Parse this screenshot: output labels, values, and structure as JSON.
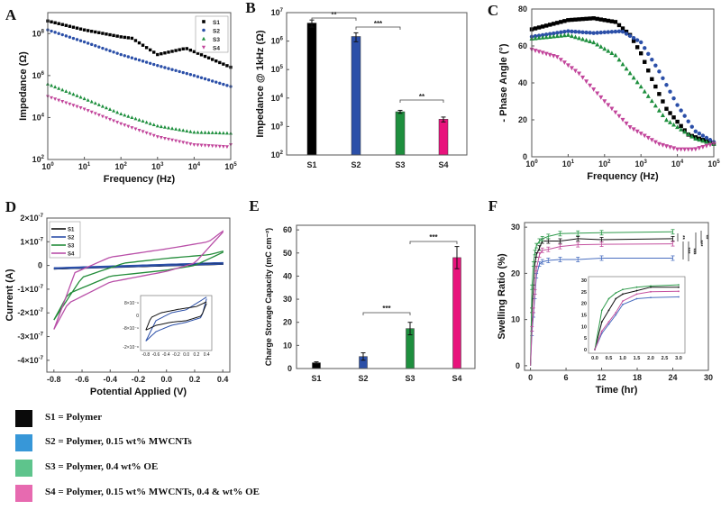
{
  "colors": {
    "S1": "#000000",
    "S2": "#2b4fa8",
    "S3": "#1e8f3e",
    "S4": "#c2459b",
    "S4bar": "#e8137c"
  },
  "sample_key": [
    {
      "label": "S1 = Polymer",
      "color": "#0a0a0a"
    },
    {
      "label": "S2 = Polymer, 0.15 wt% MWCNTs",
      "color": "#3797d8"
    },
    {
      "label": "S3 = Polymer, 0.4 wt% OE",
      "color": "#5ec48c"
    },
    {
      "label": "S4 = Polymer, 0.15 wt% MWCNTs, 0.4 & wt% OE",
      "color": "#e76ab0"
    }
  ],
  "chart_data": [
    {
      "panel": "A",
      "type": "scatter",
      "title": "",
      "xlabel": "Frequency (Hz)",
      "ylabel": "Impedance (Ω)",
      "xscale": "log",
      "yscale": "log",
      "xlim": [
        1,
        100000
      ],
      "ylim": [
        100,
        1000000000
      ],
      "xticks": [
        "10⁰",
        "10¹",
        "10²",
        "10³",
        "10⁴",
        "10⁵"
      ],
      "yticks": [
        "10²",
        "10⁴",
        "10⁶",
        "10⁸"
      ],
      "legend": {
        "placement": "top-right",
        "entries": [
          "S1",
          "S2",
          "S3",
          "S4"
        ]
      },
      "series": [
        {
          "name": "S1",
          "marker": "square",
          "points": [
            [
              1,
              400000000
            ],
            [
              10,
              150000000
            ],
            [
              100,
              70000000
            ],
            [
              200,
              60000000
            ],
            [
              1000,
              10000000
            ],
            [
              6000,
              20000000
            ],
            [
              100000,
              2500000
            ]
          ]
        },
        {
          "name": "S2",
          "marker": "circle",
          "points": [
            [
              1,
              150000000
            ],
            [
              10,
              40000000
            ],
            [
              100,
              10000000
            ],
            [
              1000,
              3000000
            ],
            [
              10000,
              1000000
            ],
            [
              100000,
              300000
            ]
          ]
        },
        {
          "name": "S3",
          "marker": "triangle-up",
          "points": [
            [
              1,
              400000
            ],
            [
              10,
              80000
            ],
            [
              100,
              15000
            ],
            [
              1000,
              4000
            ],
            [
              10000,
              2000
            ],
            [
              100000,
              1800
            ]
          ]
        },
        {
          "name": "S4",
          "marker": "triangle-down",
          "points": [
            [
              1,
              100000
            ],
            [
              10,
              25000
            ],
            [
              100,
              5000
            ],
            [
              1000,
              1200
            ],
            [
              10000,
              500
            ],
            [
              80000,
              400
            ],
            [
              100000,
              500
            ]
          ]
        }
      ]
    },
    {
      "panel": "B",
      "type": "bar",
      "title": "",
      "xlabel": "",
      "ylabel": "Impedance @ 1kHz (Ω)",
      "yscale": "log",
      "ylim": [
        100,
        10000000
      ],
      "categories": [
        "S1",
        "S2",
        "S3",
        "S4"
      ],
      "values": [
        4300000,
        1450000,
        3300,
        1800
      ],
      "errors": [
        1200000,
        500000,
        400,
        350
      ],
      "yticks": [
        "10²",
        "10³",
        "10⁴",
        "10⁵",
        "10⁶",
        "10⁷"
      ],
      "significance": [
        {
          "pair": [
            "S1",
            "S2"
          ],
          "label": "**"
        },
        {
          "pair": [
            "S2",
            "S3"
          ],
          "label": "***"
        },
        {
          "pair": [
            "S3",
            "S4"
          ],
          "label": "**"
        }
      ]
    },
    {
      "panel": "C",
      "type": "scatter",
      "title": "",
      "xlabel": "Frequency (Hz)",
      "ylabel": "- Phase Angle (°)",
      "xscale": "log",
      "xlim": [
        1,
        100000
      ],
      "ylim": [
        0,
        80
      ],
      "xticks": [
        "10⁰",
        "10¹",
        "10²",
        "10³",
        "10⁴",
        "10⁵"
      ],
      "yticks": [
        "0",
        "20",
        "40",
        "60",
        "80"
      ],
      "series": [
        {
          "name": "S1",
          "marker": "square",
          "points": [
            [
              1,
              69
            ],
            [
              10,
              74
            ],
            [
              50,
              75
            ],
            [
              200,
              73
            ],
            [
              500,
              66
            ],
            [
              1000,
              56
            ],
            [
              2000,
              42
            ],
            [
              5000,
              26
            ],
            [
              20000,
              12
            ],
            [
              100000,
              7
            ]
          ]
        },
        {
          "name": "S2",
          "marker": "circle",
          "points": [
            [
              1,
              65
            ],
            [
              10,
              68
            ],
            [
              50,
              67
            ],
            [
              300,
              68
            ],
            [
              1000,
              62
            ],
            [
              3000,
              47
            ],
            [
              10000,
              28
            ],
            [
              30000,
              14
            ],
            [
              100000,
              8
            ]
          ]
        },
        {
          "name": "S3",
          "marker": "triangle-up",
          "points": [
            [
              1,
              64
            ],
            [
              10,
              66
            ],
            [
              50,
              62
            ],
            [
              200,
              55
            ],
            [
              1000,
              38
            ],
            [
              5000,
              20
            ],
            [
              30000,
              10
            ],
            [
              100000,
              7
            ]
          ]
        },
        {
          "name": "S4",
          "marker": "triangle-down",
          "points": [
            [
              1,
              58
            ],
            [
              5,
              54
            ],
            [
              20,
              45
            ],
            [
              100,
              30
            ],
            [
              500,
              16
            ],
            [
              3000,
              7
            ],
            [
              10000,
              4
            ],
            [
              30000,
              4
            ],
            [
              100000,
              7
            ]
          ]
        }
      ]
    },
    {
      "panel": "D",
      "type": "line",
      "title": "",
      "xlabel": "Potential Applied (V)",
      "ylabel": "Current (A)",
      "xlim": [
        -0.85,
        0.45
      ],
      "ylim": [
        -4.5e-07,
        2e-07
      ],
      "xticks": [
        "-0.8",
        "-0.6",
        "-0.4",
        "-0.2",
        "0.0",
        "0.2",
        "0.4"
      ],
      "yticks": [
        "2×10⁻⁷",
        "1×10⁻⁷",
        "0",
        "-1×10⁻⁷",
        "-2×10⁻⁷",
        "-3×10⁻⁷",
        "-4×10⁻⁷"
      ],
      "legend": {
        "placement": "top-left",
        "entries": [
          "S1",
          "S2",
          "S3",
          "S4"
        ]
      },
      "series": [
        {
          "name": "S1",
          "upper": [
            [
              -0.8,
              -1.2e-08
            ],
            [
              0.4,
              1e-08
            ]
          ],
          "lower": [
            [
              0.4,
              5e-09
            ],
            [
              -0.8,
              -1.5e-08
            ]
          ]
        },
        {
          "name": "S2",
          "upper": [
            [
              -0.8,
              -1e-08
            ],
            [
              0.4,
              1.2e-08
            ]
          ],
          "lower": [
            [
              0.4,
              6e-09
            ],
            [
              -0.8,
              -1.4e-08
            ]
          ]
        },
        {
          "name": "S3",
          "upper": [
            [
              -0.8,
              -2.3e-07
            ],
            [
              -0.6,
              -5e-08
            ],
            [
              -0.3,
              1e-08
            ],
            [
              0.0,
              3e-08
            ],
            [
              0.3,
              4.5e-08
            ],
            [
              0.4,
              6e-08
            ]
          ],
          "lower": [
            [
              0.4,
              5.5e-08
            ],
            [
              0.2,
              0.0
            ],
            [
              0.0,
              -2e-08
            ],
            [
              -0.4,
              -4.5e-08
            ],
            [
              -0.7,
              -1.2e-07
            ],
            [
              -0.8,
              -2.3e-07
            ]
          ]
        },
        {
          "name": "S4",
          "upper": [
            [
              -0.8,
              -2.7e-07
            ],
            [
              -0.65,
              -3e-08
            ],
            [
              -0.4,
              3.5e-08
            ],
            [
              0.0,
              7e-08
            ],
            [
              0.3,
              1e-07
            ],
            [
              0.4,
              1.45e-07
            ]
          ],
          "lower": [
            [
              0.4,
              1.4e-07
            ],
            [
              0.2,
              1e-08
            ],
            [
              0.0,
              -2.5e-08
            ],
            [
              -0.4,
              -7e-08
            ],
            [
              -0.7,
              -1.6e-07
            ],
            [
              -0.8,
              -2.7e-07
            ]
          ]
        }
      ],
      "inset": {
        "xticks": [
          "-0.8",
          "-0.6",
          "-0.4",
          "-0.2",
          "0.0",
          "0.2",
          "0.4"
        ],
        "yticks": [
          "8×10⁻⁹",
          "0",
          "-8×10⁻⁹",
          "-2×10⁻⁸"
        ],
        "series": [
          "S1",
          "S2"
        ]
      }
    },
    {
      "panel": "E",
      "type": "bar",
      "title": "",
      "xlabel": "",
      "ylabel": "Charge Storage Capacity (mC cm⁻²)",
      "ylim": [
        0,
        62
      ],
      "categories": [
        "S1",
        "S2",
        "S3",
        "S4"
      ],
      "values": [
        2.5,
        5.2,
        17.3,
        48
      ],
      "errors": [
        0.4,
        1.6,
        2.7,
        4.8
      ],
      "yticks": [
        "0",
        "10",
        "20",
        "30",
        "40",
        "50",
        "60"
      ],
      "significance": [
        {
          "pair": [
            "S2",
            "S3"
          ],
          "label": "***"
        },
        {
          "pair": [
            "S3",
            "S4"
          ],
          "label": "***"
        }
      ]
    },
    {
      "panel": "F",
      "type": "line",
      "title": "",
      "xlabel": "Time (hr)",
      "ylabel": "Swelling Ratio (%)",
      "xlim": [
        -1,
        30
      ],
      "ylim": [
        -1,
        31
      ],
      "xticks": [
        "0",
        "6",
        "12",
        "18",
        "24",
        "30"
      ],
      "yticks": [
        "0",
        "10",
        "20",
        "30"
      ],
      "x": [
        0,
        0.25,
        0.5,
        0.75,
        1,
        1.5,
        2,
        3,
        5,
        8,
        12,
        24
      ],
      "series": [
        {
          "name": "S1",
          "values": [
            0,
            12,
            17,
            22,
            24,
            25.5,
            27,
            27,
            27,
            27.5,
            27.3,
            27.5
          ]
        },
        {
          "name": "S2",
          "values": [
            0,
            7,
            11,
            15,
            19.5,
            22,
            22.5,
            22.8,
            23,
            23,
            23.3,
            23.3
          ]
        },
        {
          "name": "S3",
          "values": [
            0,
            17,
            22,
            24.5,
            26,
            27,
            27.5,
            28,
            28.6,
            28.7,
            28.8,
            29
          ]
        },
        {
          "name": "S4",
          "values": [
            0,
            8,
            12,
            16,
            21,
            24,
            25,
            25.2,
            25.8,
            26.2,
            26.3,
            26.4
          ]
        }
      ],
      "significance_labels": [
        "**",
        "***",
        "***",
        "***",
        "**"
      ],
      "inset": {
        "xticks": [
          "0.0",
          "0.5",
          "1.0",
          "1.5",
          "2.0",
          "2.5",
          "3.0"
        ],
        "yticks": [
          "0",
          "5",
          "10",
          "15",
          "20",
          "25",
          "30"
        ]
      }
    }
  ]
}
